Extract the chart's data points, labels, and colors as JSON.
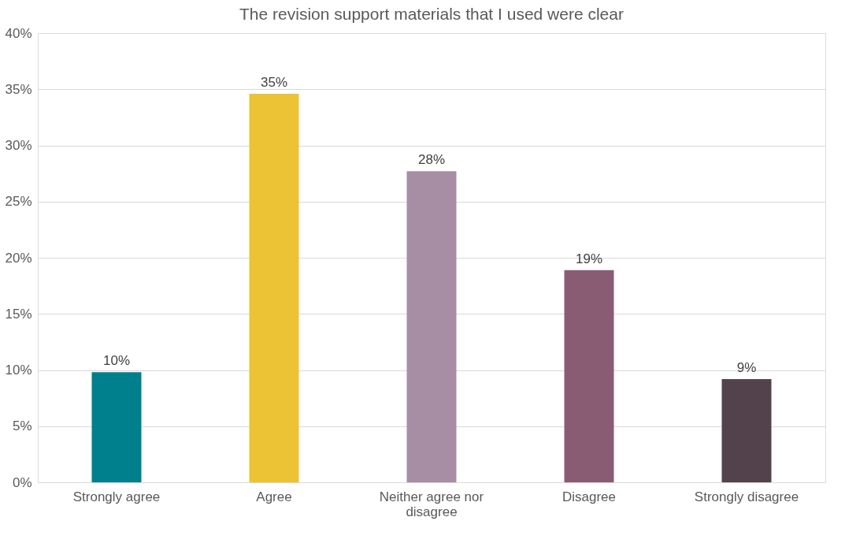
{
  "chart_data": {
    "type": "bar",
    "title": "The revision support materials that I used were clear",
    "categories": [
      "Strongly agree",
      "Agree",
      "Neither agree nor disagree",
      "Disagree",
      "Strongly disagree"
    ],
    "values": [
      9.8,
      34.6,
      27.7,
      18.9,
      9.2
    ],
    "value_labels": [
      "10%",
      "35%",
      "28%",
      "19%",
      "9%"
    ],
    "colors": [
      "#00808c",
      "#ebc334",
      "#a88ea4",
      "#8a5c74",
      "#53424c"
    ],
    "ylim": [
      0,
      40
    ],
    "yticks": [
      {
        "value": 0,
        "label": "0%"
      },
      {
        "value": 5,
        "label": "5%"
      },
      {
        "value": 10,
        "label": "10%"
      },
      {
        "value": 15,
        "label": "15%"
      },
      {
        "value": 20,
        "label": "20%"
      },
      {
        "value": 25,
        "label": "25%"
      },
      {
        "value": 30,
        "label": "30%"
      },
      {
        "value": 35,
        "label": "35%"
      },
      {
        "value": 40,
        "label": "40%"
      }
    ],
    "grid": "y"
  }
}
